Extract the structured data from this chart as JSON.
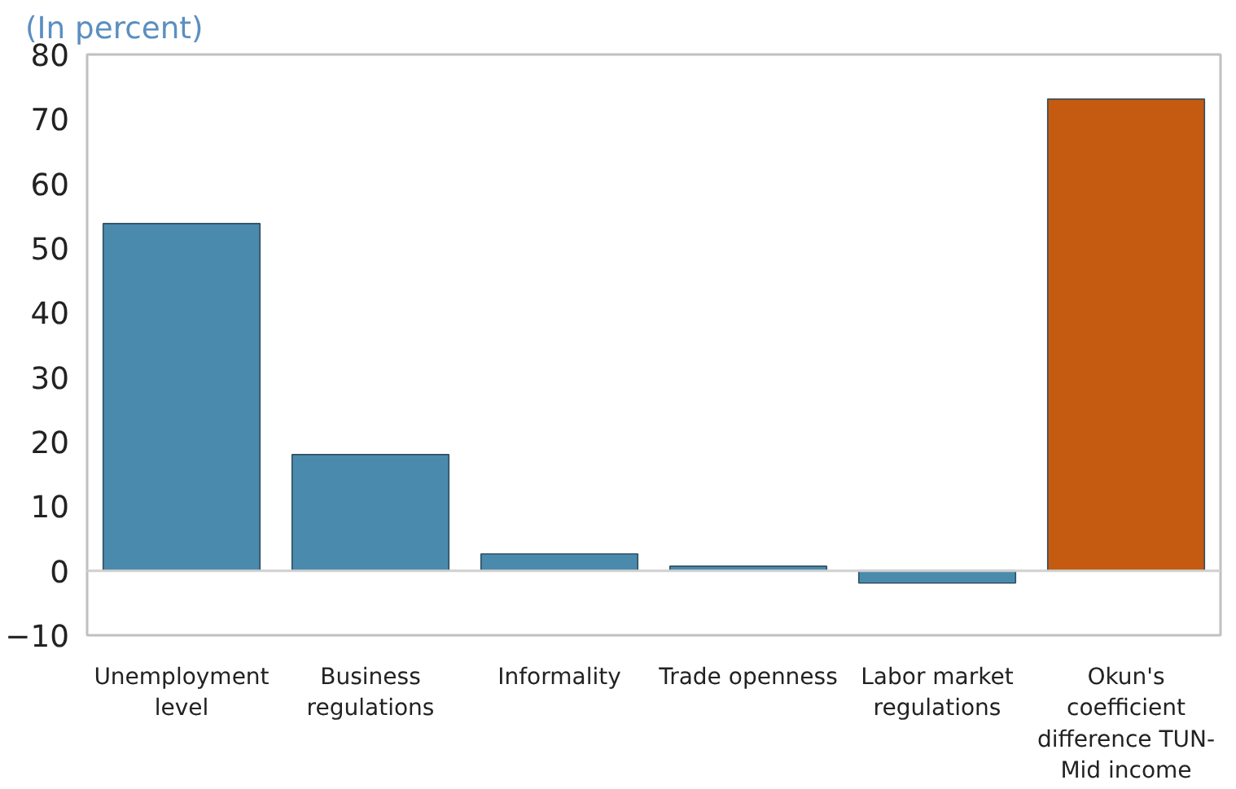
{
  "chart_data": {
    "type": "bar",
    "title": "(In percent)",
    "categories": [
      "Unemployment level",
      "Business regulations",
      "Informality",
      "Trade openness",
      "Labor market regulations",
      "Okun's coefficient difference TUN-Mid income"
    ],
    "values": [
      53.8,
      18,
      2.6,
      0.7,
      -1.9,
      73.1
    ],
    "colors": [
      "#4a8aad",
      "#4a8aad",
      "#4a8aad",
      "#4a8aad",
      "#4a8aad",
      "#c55a11"
    ],
    "ylim": [
      -10,
      80
    ],
    "yticks": [
      -10,
      0,
      10,
      20,
      30,
      40,
      50,
      60,
      70,
      80
    ]
  }
}
